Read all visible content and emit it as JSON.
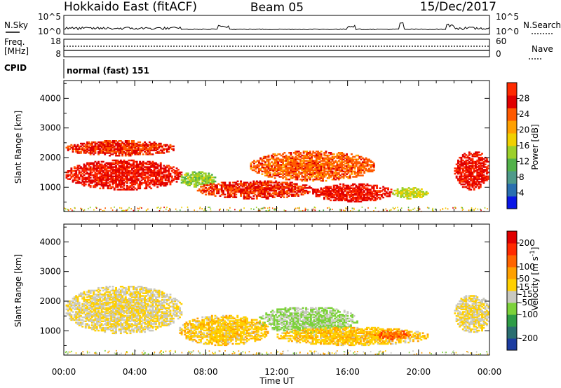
{
  "header": {
    "station": "Hokkaido East (fitACF)",
    "beam": "Beam 05",
    "date": "15/Dec/2017"
  },
  "noise_panel": {
    "left_label": "N.Sky",
    "right_label": "N.Search",
    "ticks_left": [
      "10^5",
      "10^0"
    ],
    "ticks_right": [
      "10^5",
      "10^0"
    ]
  },
  "freq_panel": {
    "label_line1": "Freq.",
    "label_line2": "[MHz]",
    "ticks_left": [
      "18",
      "8"
    ],
    "right_label": "Nave",
    "ticks_right": [
      "60",
      "0"
    ]
  },
  "cpid_panel": {
    "label": "CPID",
    "value": "normal (fast) 151"
  },
  "axes": {
    "ylabel": "Slant Range [km]",
    "xlabel": "Time UT",
    "xticks": [
      "00:00",
      "04:00",
      "08:00",
      "12:00",
      "16:00",
      "20:00",
      "00:00"
    ],
    "yticks": [
      "1000",
      "2000",
      "3000",
      "4000"
    ]
  },
  "colors": {
    "power_scale": [
      "#0a16e6",
      "#2a6fb0",
      "#4e9a8a",
      "#52b24a",
      "#9cd02a",
      "#f0d000",
      "#ffa000",
      "#ff5a00",
      "#e00000",
      "#ff2a00"
    ],
    "velocity_scale": [
      "#1c3ca0",
      "#2a6e70",
      "#2e9c46",
      "#7cd23a",
      "#c8c8c0",
      "#ffd000",
      "#ffa000",
      "#ff6400",
      "#ff2a00",
      "#e00000"
    ]
  },
  "chart_data": [
    {
      "type": "heatmap",
      "name": "power",
      "title": "Hokkaido East (fitACF) Beam 05 15/Dec/2017",
      "xlabel": "Time UT",
      "ylabel": "Slant Range [km]",
      "xlim": [
        "00:00",
        "24:00"
      ],
      "ylim": [
        180,
        4600
      ],
      "colorbar": {
        "label": "Power [dB]",
        "ticks": [
          4,
          8,
          12,
          16,
          20,
          24,
          28
        ],
        "range": [
          0,
          32
        ]
      },
      "regions": [
        {
          "t": [
            0.1,
            6.6
          ],
          "r": [
            900,
            1900
          ],
          "value": 28
        },
        {
          "t": [
            0.1,
            6.2
          ],
          "r": [
            2050,
            2550
          ],
          "value": 26
        },
        {
          "t": [
            6.5,
            8.5
          ],
          "r": [
            1000,
            1500
          ],
          "value": 14
        },
        {
          "t": [
            7.5,
            14.0
          ],
          "r": [
            600,
            1200
          ],
          "value": 26
        },
        {
          "t": [
            10.5,
            17.5
          ],
          "r": [
            1200,
            2200
          ],
          "value": 24
        },
        {
          "t": [
            14.0,
            18.5
          ],
          "r": [
            500,
            1100
          ],
          "value": 28
        },
        {
          "t": [
            18.5,
            20.5
          ],
          "r": [
            600,
            1000
          ],
          "value": 16
        },
        {
          "t": [
            22.0,
            24.0
          ],
          "r": [
            900,
            2200
          ],
          "value": 28
        }
      ]
    },
    {
      "type": "heatmap",
      "name": "velocity",
      "xlabel": "Time UT",
      "ylabel": "Slant Range [km]",
      "xlim": [
        "00:00",
        "24:00"
      ],
      "ylim": [
        180,
        4600
      ],
      "colorbar": {
        "label": "Velocity [m s^-1]",
        "ticks": [
          -200,
          -100,
          -50,
          -15,
          15,
          50,
          100,
          200
        ],
        "range": [
          -250,
          250
        ]
      },
      "regions": [
        {
          "t": [
            0.1,
            6.6
          ],
          "r": [
            900,
            2500
          ],
          "value": 0
        },
        {
          "t": [
            6.5,
            11.5
          ],
          "r": [
            500,
            1500
          ],
          "value": 30
        },
        {
          "t": [
            11.0,
            16.5
          ],
          "r": [
            900,
            1800
          ],
          "value": -60
        },
        {
          "t": [
            12.0,
            20.5
          ],
          "r": [
            500,
            1100
          ],
          "value": 35
        },
        {
          "t": [
            17.5,
            19.5
          ],
          "r": [
            700,
            1000
          ],
          "value": 120
        },
        {
          "t": [
            22.0,
            24.0
          ],
          "r": [
            900,
            2200
          ],
          "value": 0
        }
      ]
    }
  ]
}
